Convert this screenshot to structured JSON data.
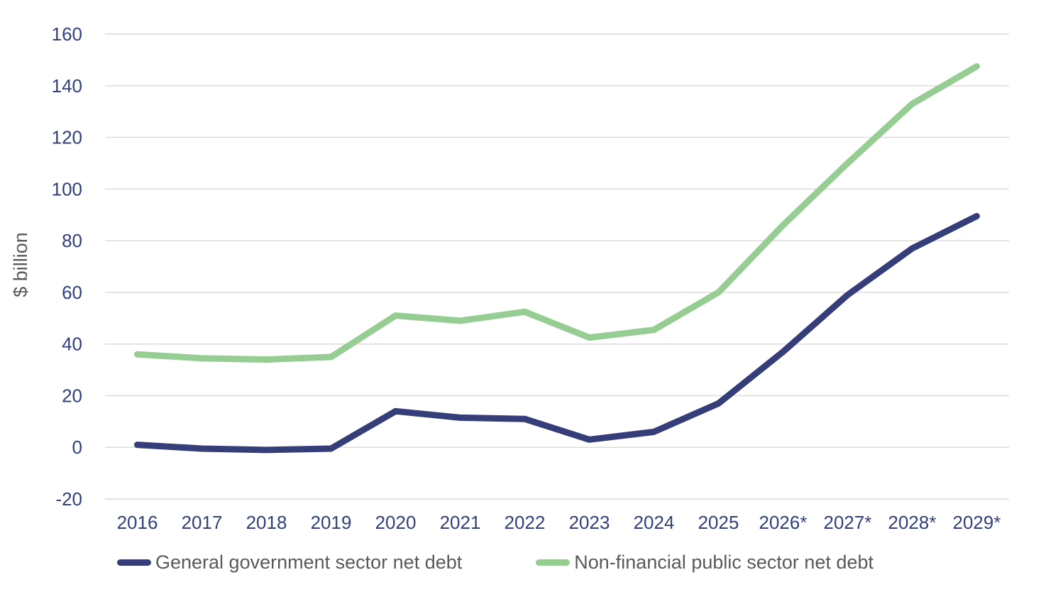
{
  "chart_data": {
    "type": "line",
    "title": "",
    "ylabel": "$ billion",
    "xlabel": "",
    "ylim": [
      -20,
      160
    ],
    "ytick_step": 20,
    "grid": true,
    "legend_position": "bottom",
    "categories": [
      "2016",
      "2017",
      "2018",
      "2019",
      "2020",
      "2021",
      "2022",
      "2023",
      "2024",
      "2025",
      "2026*",
      "2027*",
      "2028*",
      "2029*"
    ],
    "series": [
      {
        "name": "General government sector net debt",
        "color": "#353E78",
        "values": [
          1,
          -0.5,
          -1,
          -0.5,
          14,
          11.5,
          11,
          3,
          6,
          17,
          37,
          59,
          77,
          89.5
        ]
      },
      {
        "name": "Non-financial public sector net debt",
        "color": "#95CD92",
        "values": [
          36,
          34.5,
          34,
          35,
          51,
          49,
          52.5,
          42.5,
          45.5,
          60,
          86,
          110,
          133,
          147.5
        ]
      }
    ]
  },
  "colors": {
    "background": "#FFFFFF",
    "gridline": "#D9D9D9",
    "tick_label": "#32407F",
    "axis_label": "#595959"
  }
}
